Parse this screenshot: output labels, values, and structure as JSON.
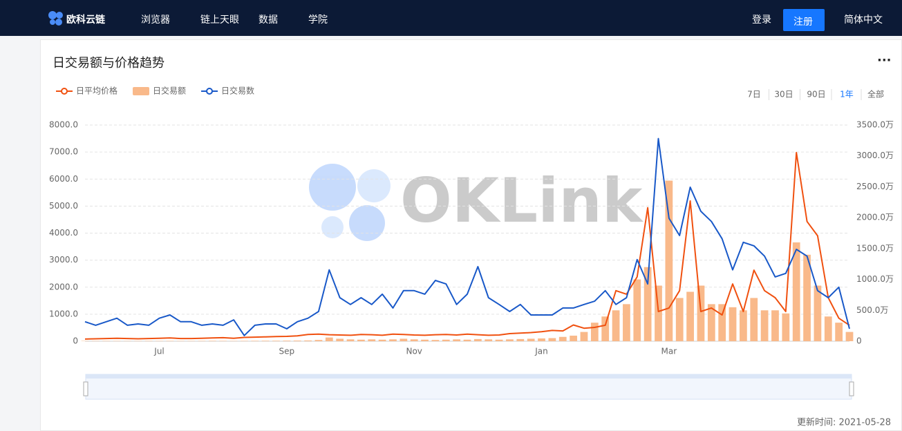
{
  "nav": {
    "logo": "欧科云链",
    "menu": [
      "浏览器",
      "链上天眼",
      "数据",
      "学院"
    ],
    "login": "登录",
    "register": "注册",
    "language": "简体中文"
  },
  "card": {
    "title": "日交易额与价格趋势",
    "ranges": [
      "7日",
      "30日",
      "90日",
      "1年",
      "全部"
    ],
    "updated": "更新时间: 2021-05-28"
  },
  "chart_data": {
    "type": "combo",
    "watermark": "OKLink",
    "categories": [
      null,
      null,
      null,
      null,
      null,
      null,
      null,
      "Jul",
      null,
      null,
      null,
      null,
      null,
      null,
      null,
      null,
      null,
      null,
      null,
      "Sep",
      null,
      null,
      null,
      null,
      null,
      null,
      null,
      null,
      null,
      null,
      null,
      "Nov",
      null,
      null,
      null,
      null,
      null,
      null,
      null,
      null,
      null,
      null,
      null,
      "Jan",
      null,
      null,
      null,
      null,
      null,
      null,
      null,
      null,
      null,
      null,
      null,
      "Mar",
      null,
      null,
      null,
      null,
      null,
      null,
      null,
      null,
      null,
      null,
      null,
      null,
      null,
      null,
      null,
      null,
      null
    ],
    "series": [
      {
        "name": "日平均价格",
        "type": "line",
        "color": "#f0500f",
        "values": [
          80,
          90,
          100,
          110,
          100,
          90,
          100,
          110,
          120,
          100,
          100,
          110,
          120,
          130,
          110,
          140,
          150,
          160,
          170,
          180,
          200,
          250,
          260,
          240,
          230,
          220,
          250,
          240,
          220,
          260,
          250,
          230,
          220,
          240,
          250,
          230,
          260,
          240,
          220,
          230,
          280,
          300,
          320,
          350,
          400,
          380,
          600,
          480,
          510,
          590,
          1870,
          1740,
          2380,
          4940,
          1100,
          1230,
          1870,
          5190,
          1100,
          1230,
          970,
          2120,
          1100,
          2630,
          1870,
          1610,
          1100,
          6980,
          4430,
          3900,
          1610,
          850,
          590
        ]
      },
      {
        "name": "日交易额",
        "type": "bar",
        "axis": "y2",
        "color": "#f9b98a",
        "values": [
          5,
          5,
          6,
          5,
          4,
          5,
          6,
          5,
          6,
          5,
          5,
          6,
          7,
          6,
          5,
          6,
          7,
          8,
          8,
          9,
          10,
          12,
          20,
          60,
          40,
          30,
          25,
          30,
          25,
          30,
          40,
          30,
          25,
          20,
          25,
          30,
          25,
          35,
          30,
          25,
          30,
          35,
          40,
          45,
          50,
          70,
          90,
          150,
          300,
          400,
          500,
          600,
          1000,
          1200,
          900,
          2600,
          700,
          800,
          900,
          600,
          600,
          550,
          500,
          700,
          500,
          500,
          450,
          1600,
          1400,
          900,
          400,
          300,
          150
        ]
      },
      {
        "name": "日交易数",
        "type": "line",
        "color": "#1858c8",
        "values": [
          720,
          590,
          720,
          850,
          590,
          640,
          590,
          850,
          970,
          720,
          720,
          590,
          640,
          590,
          790,
          210,
          590,
          640,
          640,
          460,
          720,
          850,
          1100,
          2640,
          1610,
          1360,
          1610,
          1360,
          1740,
          1230,
          1870,
          1870,
          1740,
          2250,
          2120,
          1360,
          1740,
          2760,
          1610,
          1360,
          1100,
          1360,
          970,
          970,
          970,
          1230,
          1230,
          1360,
          1480,
          1870,
          1360,
          1610,
          3020,
          2120,
          7500,
          4550,
          3910,
          5700,
          4810,
          4430,
          3790,
          2640,
          3660,
          3530,
          3150,
          2380,
          2510,
          3400,
          3150,
          1870,
          1610,
          2000,
          460
        ]
      }
    ],
    "ylim": [
      0,
      8000
    ],
    "yticks": [
      0,
      {
        "value": 1000,
        "label": "1000.0"
      },
      {
        "value": 2000,
        "label": "2000.0"
      },
      {
        "value": 3000,
        "label": "3000.0"
      },
      {
        "value": 4000,
        "label": "4000.0"
      },
      {
        "value": 5000,
        "label": "5000.0"
      },
      {
        "value": 6000,
        "label": "6000.0"
      },
      {
        "value": 7000,
        "label": "7000.0"
      },
      {
        "value": 8000,
        "label": "8000.0"
      }
    ],
    "y2lim": [
      0,
      3500
    ],
    "y2ticks": [
      0,
      {
        "value": 500,
        "label": "500.0万"
      },
      {
        "value": 1000,
        "label": "1000.0万"
      },
      {
        "value": 1500,
        "label": "1500.0万"
      },
      {
        "value": 2000,
        "label": "2000.0万"
      },
      {
        "value": 2500,
        "label": "2500.0万"
      },
      {
        "value": 3000,
        "label": "3000.0万"
      },
      {
        "value": 3500,
        "label": "3500.0万"
      }
    ],
    "grid": true
  }
}
